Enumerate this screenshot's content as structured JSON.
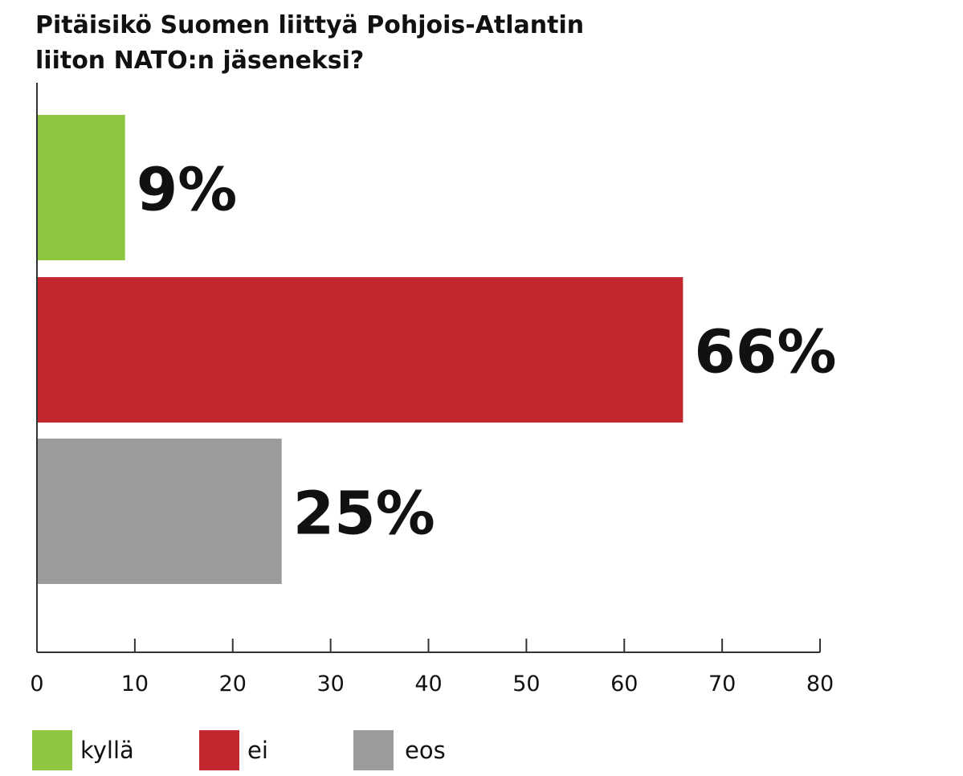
{
  "title_line1": "Pitäisikö Suomen liittyä Pohjois-Atlantin",
  "title_line2": "liiton NATO:n jäseneksi?",
  "colors": {
    "kylla": "#8dc63f",
    "ei": "#c1272d",
    "eos": "#9b9b9b",
    "axis": "#333333"
  },
  "chart_data": {
    "type": "bar",
    "orientation": "horizontal",
    "title": "Pitäisikö Suomen liittyä Pohjois-Atlantin liiton NATO:n jäseneksi?",
    "categories": [
      "kyllä",
      "ei",
      "eos"
    ],
    "values": [
      9,
      66,
      25
    ],
    "value_labels": [
      "9%",
      "66%",
      "25%"
    ],
    "xlim": [
      0,
      80
    ],
    "xticks": [
      0,
      10,
      20,
      30,
      40,
      50,
      60,
      70,
      80
    ],
    "xlabel": "",
    "ylabel": "",
    "grid": false,
    "legend": "bottom",
    "legend_entries": [
      "kyllä",
      "ei",
      "eos"
    ]
  }
}
